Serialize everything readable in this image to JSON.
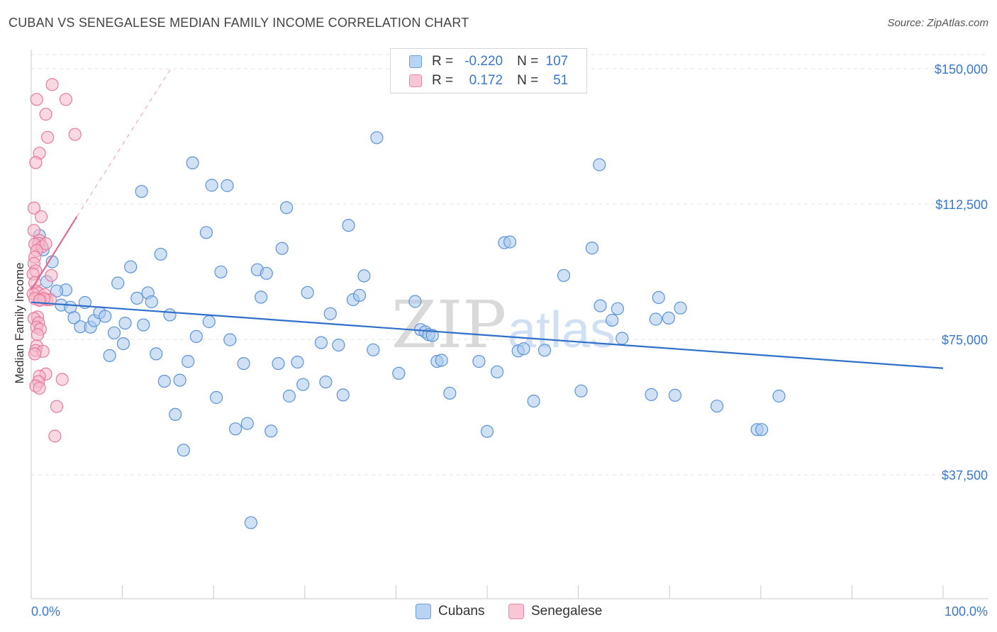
{
  "header": {
    "title": "CUBAN VS SENEGALESE MEDIAN FAMILY INCOME CORRELATION CHART",
    "source": "Source: ZipAtlas.com"
  },
  "watermark": {
    "zip": "ZIP",
    "atlas": "atlas"
  },
  "colors": {
    "cubans_fill": "#a9c8ef",
    "cubans_stroke": "#5b93d8",
    "cubans_line": "#2f6fc9",
    "senegalese_fill": "#f6b8cb",
    "senegalese_stroke": "#e8799c",
    "senegalese_line": "#e06a92",
    "tick_text": "#3a78c9",
    "grid": "#e3e3e3"
  },
  "legend_top": {
    "rows": [
      {
        "r_label": "R =",
        "r_value": "-0.220",
        "n_label": "N =",
        "n_value": "107"
      },
      {
        "r_label": "R =",
        "r_value": "0.172",
        "n_label": "N =",
        "n_value": "51"
      }
    ]
  },
  "legend_bottom": {
    "cubans": "Cubans",
    "senegalese": "Senegalese"
  },
  "chart_data": {
    "type": "scatter",
    "title": "CUBAN VS SENEGALESE MEDIAN FAMILY INCOME CORRELATION CHART",
    "ylabel": "Median Family Income",
    "xlabel": "",
    "xlim": [
      0,
      100
    ],
    "ylim": [
      15000,
      152000
    ],
    "x_tick_labels": [
      "0.0%",
      "100.0%"
    ],
    "y_ticks": [
      37500,
      75000,
      112500,
      150000
    ],
    "y_tick_labels": [
      "$37,500",
      "$75,000",
      "$112,500",
      "$150,000"
    ],
    "grid": true,
    "legend_position": "top-center",
    "series": [
      {
        "name": "Cubans",
        "r": -0.22,
        "n": 107,
        "trend": {
          "x": [
            0,
            100
          ],
          "y": [
            85300,
            67000
          ]
        },
        "points": [
          [
            0.9,
            103800
          ],
          [
            1.3,
            99800
          ],
          [
            2.3,
            96500
          ],
          [
            1.7,
            91000
          ],
          [
            3.8,
            88700
          ],
          [
            2.8,
            88400
          ],
          [
            3.3,
            84500
          ],
          [
            5.9,
            85200
          ],
          [
            4.3,
            83900
          ],
          [
            4.7,
            81000
          ],
          [
            5.4,
            78500
          ],
          [
            6.5,
            78400
          ],
          [
            6.9,
            80200
          ],
          [
            7.5,
            82400
          ],
          [
            8.1,
            81400
          ],
          [
            8.6,
            70500
          ],
          [
            9.1,
            76800
          ],
          [
            9.5,
            90600
          ],
          [
            10.1,
            73800
          ],
          [
            10.3,
            79500
          ],
          [
            10.9,
            95100
          ],
          [
            11.6,
            86400
          ],
          [
            12.1,
            116000
          ],
          [
            12.3,
            79000
          ],
          [
            12.8,
            87900
          ],
          [
            13.2,
            85400
          ],
          [
            13.7,
            71000
          ],
          [
            14.2,
            98600
          ],
          [
            14.6,
            63400
          ],
          [
            15.2,
            81800
          ],
          [
            15.8,
            54200
          ],
          [
            16.3,
            63700
          ],
          [
            16.7,
            44300
          ],
          [
            17.2,
            68900
          ],
          [
            17.7,
            123900
          ],
          [
            18.1,
            75800
          ],
          [
            19.2,
            104600
          ],
          [
            19.5,
            79900
          ],
          [
            19.8,
            117700
          ],
          [
            20.3,
            58900
          ],
          [
            20.8,
            93700
          ],
          [
            21.5,
            117600
          ],
          [
            21.8,
            74900
          ],
          [
            22.4,
            50200
          ],
          [
            23.3,
            68300
          ],
          [
            23.7,
            51700
          ],
          [
            24.1,
            24200
          ],
          [
            24.8,
            94300
          ],
          [
            25.2,
            86700
          ],
          [
            25.8,
            93300
          ],
          [
            26.3,
            49600
          ],
          [
            27.1,
            68300
          ],
          [
            27.5,
            100200
          ],
          [
            28.0,
            111500
          ],
          [
            28.3,
            59300
          ],
          [
            29.2,
            68700
          ],
          [
            29.8,
            62500
          ],
          [
            30.3,
            88000
          ],
          [
            31.8,
            74100
          ],
          [
            32.3,
            63200
          ],
          [
            32.8,
            82100
          ],
          [
            33.7,
            73400
          ],
          [
            34.2,
            59600
          ],
          [
            34.8,
            106600
          ],
          [
            35.3,
            86000
          ],
          [
            36.0,
            87200
          ],
          [
            36.5,
            92600
          ],
          [
            37.5,
            72100
          ],
          [
            37.9,
            130900
          ],
          [
            40.3,
            65600
          ],
          [
            42.1,
            85500
          ],
          [
            42.7,
            77700
          ],
          [
            43.2,
            77100
          ],
          [
            43.6,
            76300
          ],
          [
            44.0,
            76100
          ],
          [
            44.5,
            68900
          ],
          [
            45.0,
            69200
          ],
          [
            45.9,
            60100
          ],
          [
            49.1,
            68900
          ],
          [
            50.0,
            49500
          ],
          [
            51.1,
            66000
          ],
          [
            51.9,
            101800
          ],
          [
            52.5,
            102000
          ],
          [
            53.4,
            71800
          ],
          [
            54.0,
            72400
          ],
          [
            55.1,
            57900
          ],
          [
            56.3,
            72000
          ],
          [
            58.4,
            92700
          ],
          [
            60.3,
            60700
          ],
          [
            61.5,
            100300
          ],
          [
            62.3,
            123400
          ],
          [
            62.4,
            84300
          ],
          [
            63.7,
            80300
          ],
          [
            64.3,
            83500
          ],
          [
            64.8,
            75300
          ],
          [
            68.0,
            59700
          ],
          [
            68.5,
            80600
          ],
          [
            68.8,
            86600
          ],
          [
            69.9,
            80900
          ],
          [
            70.6,
            59500
          ],
          [
            71.2,
            83700
          ],
          [
            75.2,
            56500
          ],
          [
            79.6,
            50000
          ],
          [
            80.1,
            50000
          ],
          [
            82.0,
            59300
          ]
        ]
      },
      {
        "name": "Senegalese",
        "r": 0.172,
        "n": 51,
        "trend": {
          "x": [
            0,
            5.0
          ],
          "y": [
            88700,
            109000
          ]
        },
        "trend_extended": {
          "x": [
            5.0,
            15.5
          ],
          "y": [
            109000,
            150800
          ]
        },
        "points": [
          [
            2.3,
            145600
          ],
          [
            3.8,
            141500
          ],
          [
            0.6,
            141500
          ],
          [
            1.6,
            137400
          ],
          [
            4.8,
            131800
          ],
          [
            1.8,
            131000
          ],
          [
            0.9,
            126600
          ],
          [
            0.5,
            124000
          ],
          [
            0.3,
            111400
          ],
          [
            1.1,
            109000
          ],
          [
            0.3,
            105200
          ],
          [
            0.9,
            102400
          ],
          [
            0.8,
            101600
          ],
          [
            0.4,
            101400
          ],
          [
            1.2,
            100700
          ],
          [
            1.6,
            101500
          ],
          [
            0.6,
            99600
          ],
          [
            0.4,
            97800
          ],
          [
            0.3,
            96000
          ],
          [
            0.5,
            94000
          ],
          [
            0.2,
            93100
          ],
          [
            2.2,
            92700
          ],
          [
            0.4,
            90700
          ],
          [
            0.5,
            88400
          ],
          [
            0.8,
            87900
          ],
          [
            0.2,
            87600
          ],
          [
            1.5,
            87400
          ],
          [
            0.4,
            86300
          ],
          [
            1.7,
            86000
          ],
          [
            1.0,
            86000
          ],
          [
            2.1,
            86000
          ],
          [
            1.4,
            86300
          ],
          [
            0.9,
            85800
          ],
          [
            0.7,
            81200
          ],
          [
            0.3,
            80800
          ],
          [
            0.8,
            79600
          ],
          [
            0.6,
            78400
          ],
          [
            1.0,
            77800
          ],
          [
            0.7,
            76300
          ],
          [
            0.6,
            73200
          ],
          [
            0.5,
            71900
          ],
          [
            1.3,
            71700
          ],
          [
            0.4,
            71000
          ],
          [
            1.6,
            65400
          ],
          [
            0.9,
            64800
          ],
          [
            3.4,
            63900
          ],
          [
            0.8,
            63300
          ],
          [
            0.5,
            62100
          ],
          [
            0.9,
            61500
          ],
          [
            2.8,
            56400
          ],
          [
            2.6,
            48200
          ]
        ]
      }
    ]
  }
}
